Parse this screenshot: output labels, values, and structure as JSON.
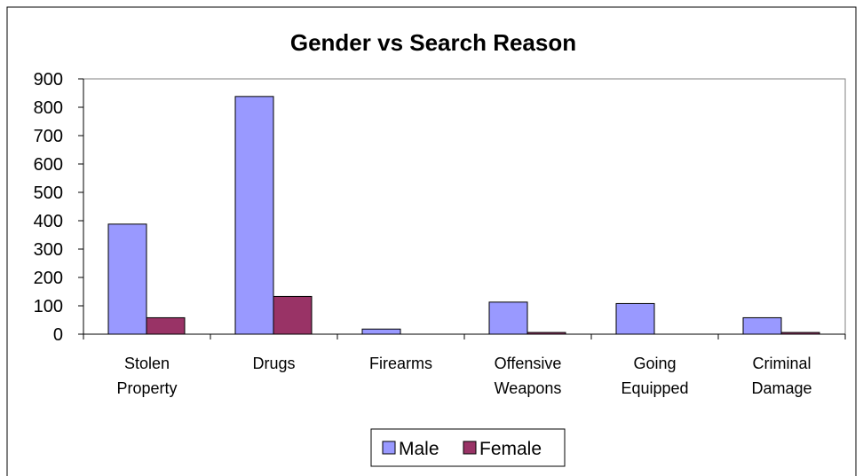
{
  "chart_data": {
    "type": "bar",
    "title": "Gender vs Search Reason",
    "categories": [
      [
        "Stolen",
        "Property"
      ],
      [
        "Drugs"
      ],
      [
        "Firearms"
      ],
      [
        "Offensive",
        "Weapons"
      ],
      [
        "Going",
        "Equipped"
      ],
      [
        "Criminal",
        "Damage"
      ]
    ],
    "series": [
      {
        "name": "Male",
        "values": [
          388,
          838,
          18,
          113,
          108,
          58
        ]
      },
      {
        "name": "Female",
        "values": [
          58,
          133,
          0,
          6,
          0,
          6
        ]
      }
    ],
    "ylim": [
      0,
      900
    ],
    "yticks": [
      0,
      100,
      200,
      300,
      400,
      500,
      600,
      700,
      800,
      900
    ],
    "xlabel": "",
    "ylabel": "",
    "grid": false,
    "legend_position": "bottom",
    "colors": {
      "Male": "#9999ff",
      "Female": "#993366",
      "plot_background": "#ffffff",
      "border": "#000000"
    }
  }
}
